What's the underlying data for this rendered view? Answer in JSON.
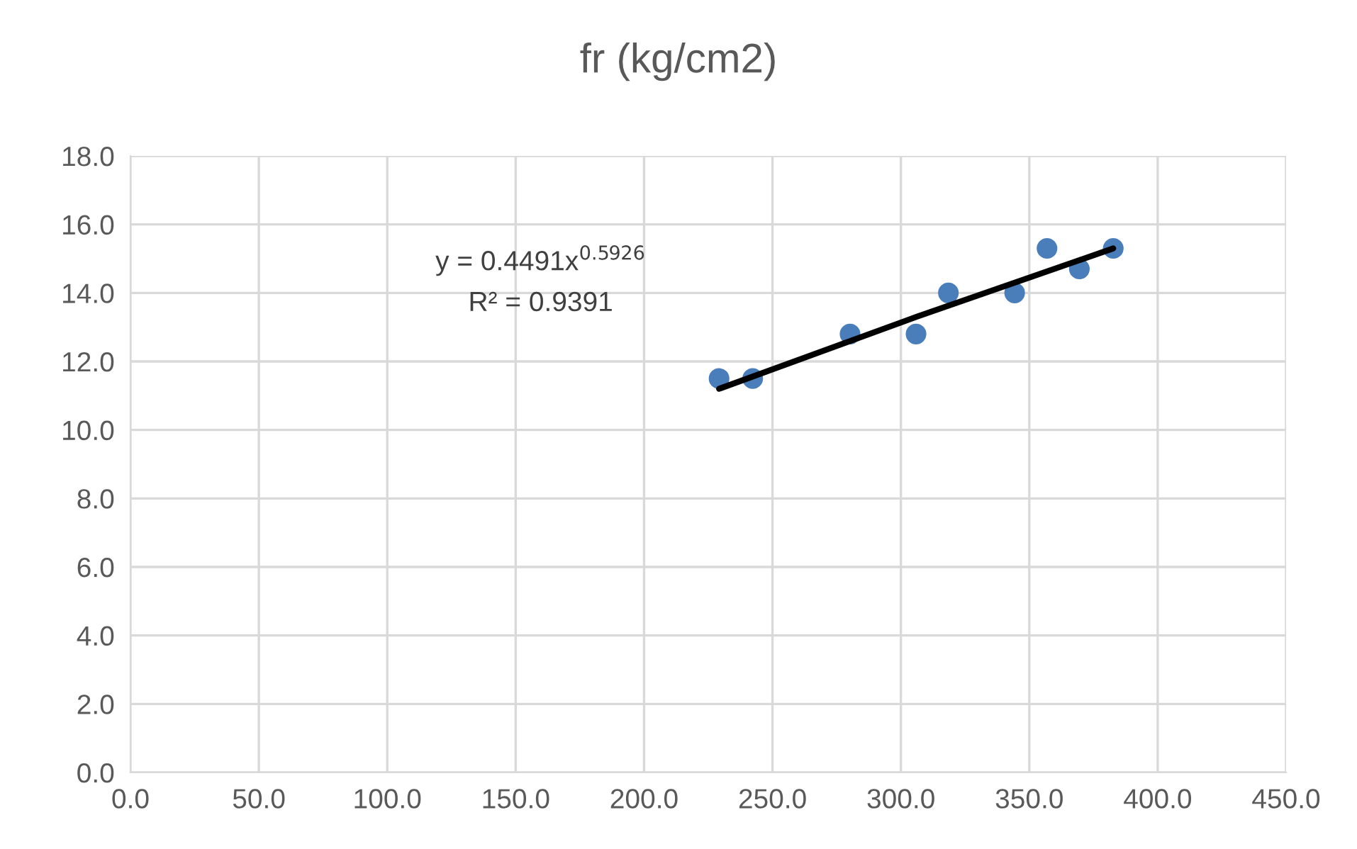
{
  "chart_data": {
    "type": "scatter",
    "title": "fr (kg/cm2)",
    "series": [
      {
        "color": "#4a7ebb",
        "marker": "circle",
        "x": [
          229.2,
          242.3,
          280.2,
          305.9,
          318.5,
          344.3,
          356.9,
          369.5,
          382.7
        ],
        "values": [
          11.5,
          11.5,
          12.8,
          12.8,
          14.0,
          14.0,
          15.3,
          14.7,
          15.3
        ]
      },
      {
        "type": "line",
        "color": "#000000",
        "marker": "none",
        "line_style": "solid",
        "x": [
          229.2,
          306.0,
          382.7
        ],
        "values": [
          11.2,
          13.3,
          15.3
        ]
      }
    ],
    "annotations": [
      "y = 0.4491x$^{0.5926}$",
      "R² = 0.9391"
    ],
    "xlim": [
      0,
      450
    ],
    "xticks": [
      {
        "value": 0,
        "label": "0.0"
      },
      {
        "value": 50,
        "label": "50.0"
      },
      {
        "value": 100,
        "label": "100.0"
      },
      {
        "value": 150,
        "label": "150.0"
      },
      {
        "value": 200,
        "label": "200.0"
      },
      {
        "value": 250,
        "label": "250.0"
      },
      {
        "value": 300,
        "label": "300.0"
      },
      {
        "value": 350,
        "label": "350.0"
      },
      {
        "value": 400,
        "label": "400.0"
      },
      {
        "value": 450,
        "label": "450.0"
      }
    ],
    "ylim": [
      0,
      18
    ],
    "yticks": [
      {
        "value": 0,
        "label": "0.0"
      },
      {
        "value": 2,
        "label": "2.0"
      },
      {
        "value": 4,
        "label": "4.0"
      },
      {
        "value": 6,
        "label": "6.0"
      },
      {
        "value": 8,
        "label": "8.0"
      },
      {
        "value": 10,
        "label": "10.0"
      },
      {
        "value": 12,
        "label": "12.0"
      },
      {
        "value": 14,
        "label": "14.0"
      },
      {
        "value": 16,
        "label": "16.0"
      },
      {
        "value": 18,
        "label": "18.0"
      }
    ],
    "grid": true,
    "legend": false
  }
}
